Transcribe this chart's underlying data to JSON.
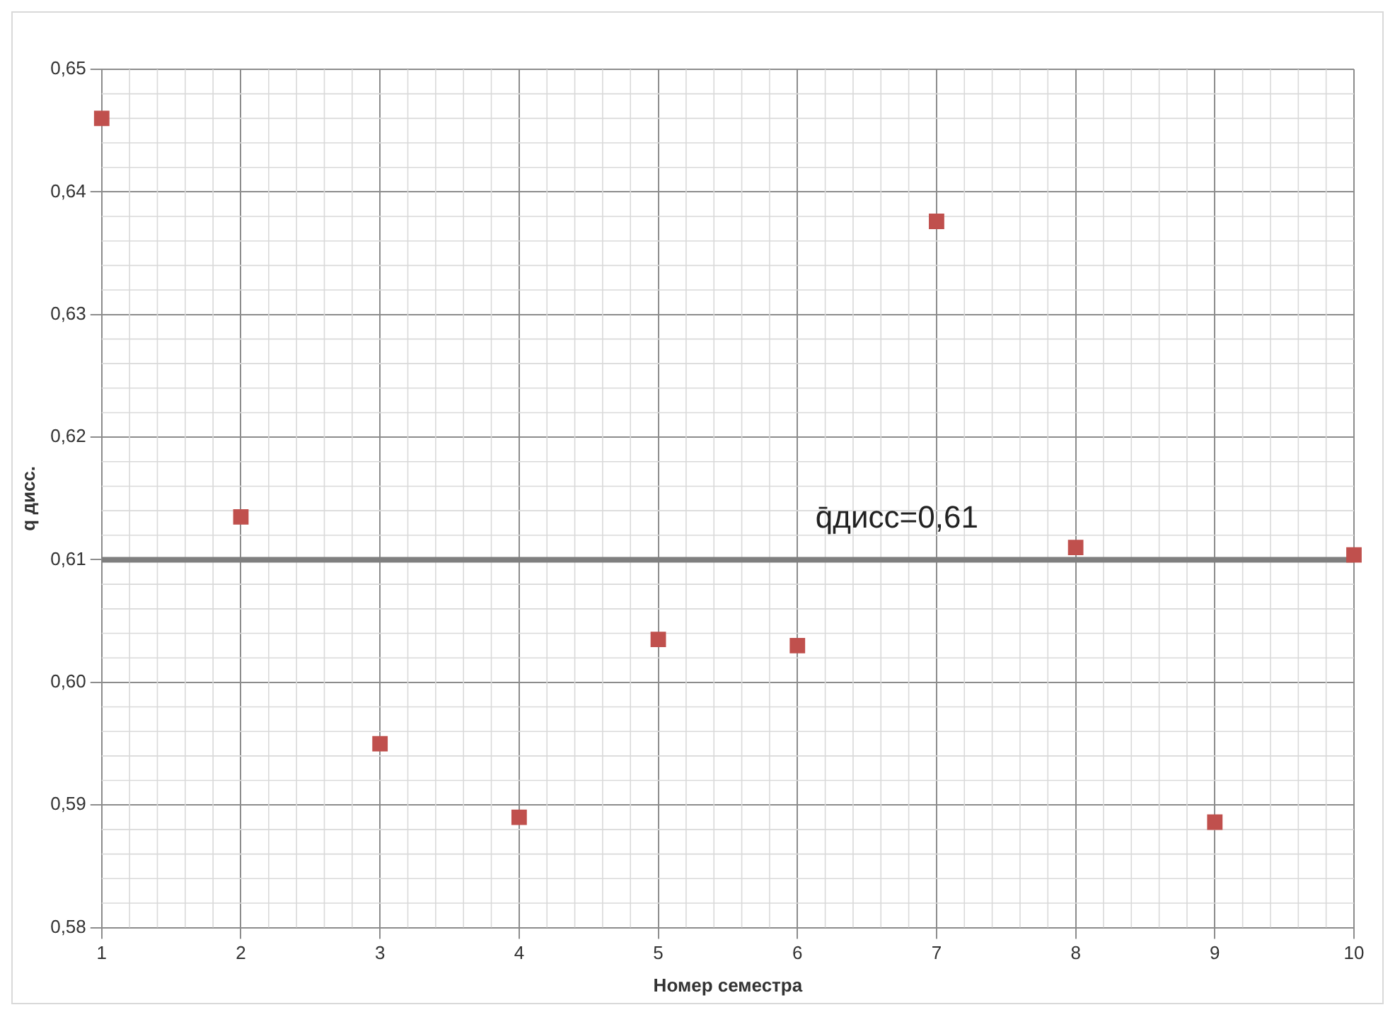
{
  "chart_data": {
    "type": "scatter",
    "xlabel": "Номер семестра",
    "ylabel": "q дисс.",
    "x": [
      1,
      2,
      3,
      4,
      5,
      6,
      7,
      8,
      9,
      10
    ],
    "series": [
      {
        "color": "#c0504d",
        "values": [
          0.646,
          0.6135,
          0.595,
          0.589,
          0.6035,
          0.603,
          0.6376,
          0.611,
          0.5886,
          0.6104
        ]
      }
    ],
    "xlim": [
      1,
      10
    ],
    "xticks": [
      1,
      2,
      3,
      4,
      5,
      6,
      7,
      8,
      9,
      10
    ],
    "ylim": [
      0.58,
      0.65
    ],
    "yticks": [
      {
        "value": 0.58,
        "label": "0,58"
      },
      {
        "value": 0.59,
        "label": "0,59"
      },
      {
        "value": 0.6,
        "label": "0,60"
      },
      {
        "value": 0.61,
        "label": "0,61"
      },
      {
        "value": 0.62,
        "label": "0,62"
      },
      {
        "value": 0.63,
        "label": "0,63"
      },
      {
        "value": 0.64,
        "label": "0,64"
      },
      {
        "value": 0.65,
        "label": "0,65"
      }
    ],
    "ref_lines": [
      {
        "axis": "y",
        "value": 0.61,
        "label": "q̄дисс=0,61",
        "color": "#7f7f7f"
      }
    ],
    "grid": true,
    "legend": false,
    "marker": "square"
  }
}
